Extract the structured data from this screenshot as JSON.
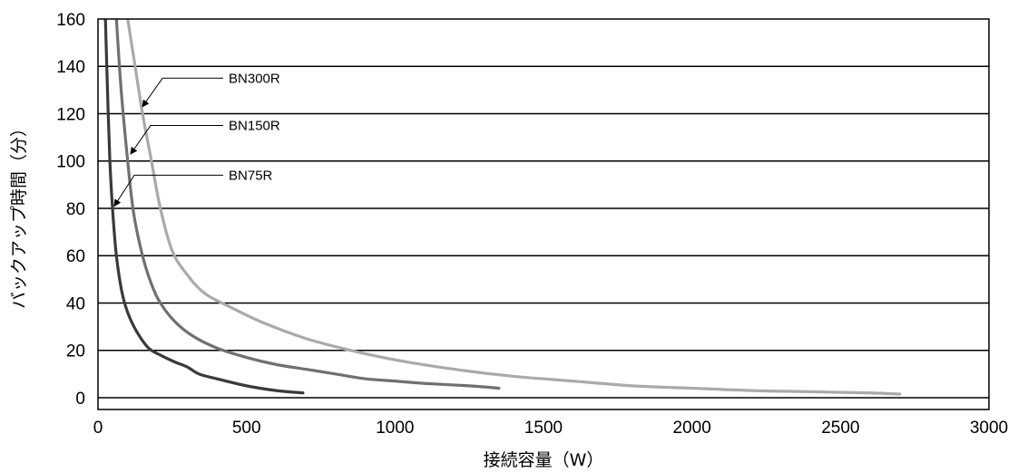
{
  "chart_data": {
    "type": "line",
    "title": "",
    "xlabel": "接続容量（W）",
    "ylabel": "バックアップ時間（分）",
    "xlim": [
      0,
      3000
    ],
    "ylim": [
      -5,
      160
    ],
    "x_ticks": [
      0,
      500,
      1000,
      1500,
      2000,
      2500,
      3000
    ],
    "y_ticks": [
      0,
      20,
      40,
      60,
      80,
      100,
      120,
      140,
      160
    ],
    "grid": "horizontal",
    "legend": "annotations",
    "series": [
      {
        "name": "BN75R",
        "color": "#3a3a3a",
        "points": [
          [
            25,
            160
          ],
          [
            32,
            130
          ],
          [
            40,
            100
          ],
          [
            50,
            78
          ],
          [
            62,
            60
          ],
          [
            80,
            45
          ],
          [
            100,
            36
          ],
          [
            130,
            28
          ],
          [
            170,
            21
          ],
          [
            210,
            18
          ],
          [
            260,
            15
          ],
          [
            300,
            13
          ],
          [
            340,
            10
          ],
          [
            400,
            8
          ],
          [
            500,
            5
          ],
          [
            600,
            3
          ],
          [
            690,
            2
          ]
        ]
      },
      {
        "name": "BN150R",
        "color": "#707070",
        "points": [
          [
            62,
            160
          ],
          [
            78,
            130
          ],
          [
            100,
            100
          ],
          [
            120,
            78
          ],
          [
            150,
            60
          ],
          [
            180,
            48
          ],
          [
            210,
            40
          ],
          [
            260,
            32
          ],
          [
            320,
            26
          ],
          [
            400,
            21
          ],
          [
            500,
            17
          ],
          [
            600,
            14
          ],
          [
            700,
            12
          ],
          [
            800,
            10
          ],
          [
            900,
            8
          ],
          [
            1000,
            7
          ],
          [
            1100,
            6
          ],
          [
            1250,
            5
          ],
          [
            1350,
            4
          ]
        ]
      },
      {
        "name": "BN300R",
        "color": "#aaaaaa",
        "points": [
          [
            100,
            160
          ],
          [
            125,
            140
          ],
          [
            150,
            120
          ],
          [
            180,
            100
          ],
          [
            210,
            80
          ],
          [
            250,
            62
          ],
          [
            300,
            52
          ],
          [
            360,
            44
          ],
          [
            450,
            38
          ],
          [
            550,
            32
          ],
          [
            700,
            25
          ],
          [
            850,
            20
          ],
          [
            1000,
            16
          ],
          [
            1200,
            12
          ],
          [
            1400,
            9
          ],
          [
            1600,
            7
          ],
          [
            1800,
            5
          ],
          [
            2000,
            4
          ],
          [
            2200,
            3
          ],
          [
            2400,
            2.5
          ],
          [
            2600,
            2
          ],
          [
            2700,
            1.5
          ]
        ]
      }
    ],
    "annotations": [
      {
        "text": "BN300R",
        "series": "BN300R",
        "arrow_to": [
          150,
          123
        ],
        "label_at": [
          440,
          135
        ]
      },
      {
        "text": "BN150R",
        "series": "BN150R",
        "arrow_to": [
          110,
          103
        ],
        "label_at": [
          440,
          115
        ]
      },
      {
        "text": "BN75R",
        "series": "BN75R",
        "arrow_to": [
          55,
          81
        ],
        "label_at": [
          440,
          94
        ]
      }
    ]
  }
}
